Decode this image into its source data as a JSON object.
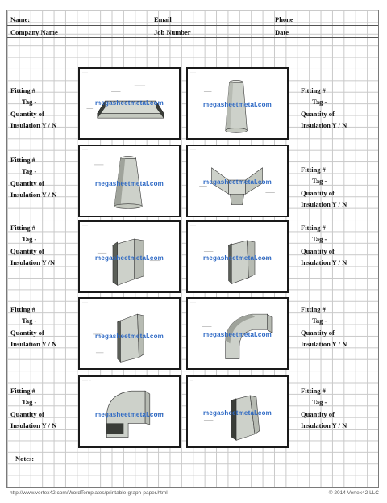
{
  "header": {
    "name_label": "Name:",
    "email_label": "Email",
    "phone_label": "Phone",
    "company_label": "Company Name",
    "job_label": "Job Number",
    "date_label": "Date"
  },
  "rows": [
    {
      "left": [
        "Fitting #",
        "Tag -",
        "Quantity of",
        "Insulation Y / N"
      ],
      "right": [
        "Fitting #",
        "Tag -",
        "Quantity of",
        "Insulation Y / N"
      ]
    },
    {
      "left": [
        "Fitting #",
        "Tag -",
        "Quantity of",
        "Insulation Y / N"
      ],
      "right": [
        "Fitting #",
        "Tag -",
        "Quantity of",
        "Insulation Y / N"
      ]
    },
    {
      "left": [
        "Fitting #",
        "Tag -",
        "Quantity of",
        "Insulation Y /N"
      ],
      "right": [
        "Fitting #",
        "Tag -",
        "Quantity of",
        "Insulation Y / N"
      ]
    },
    {
      "left": [
        "Fitting #",
        "Tag -",
        "Quantity of",
        "Insulation Y / N"
      ],
      "right": [
        "Fitting #",
        "Tag -",
        "Quantity of",
        "Insulation Y / N"
      ]
    },
    {
      "left": [
        "Fitting #",
        "Tag -",
        "Quantity of",
        "Insulation Y / N"
      ],
      "right": [
        "Fitting #",
        "Tag -",
        "Quantity of",
        "Insulation Y / N"
      ]
    }
  ],
  "watermark": "megasheetmetal.com",
  "notes_label": "Notes:",
  "footer": {
    "url": "http://www.vertex42.com/WordTemplates/printable-graph-paper.html",
    "copyright": "© 2014 Vertex42 LLC"
  },
  "colors": {
    "watermark": "#2b67c4",
    "grid": "#c9c9c9",
    "frame": "#1a1a1a",
    "duct": "#cfd3cc"
  }
}
